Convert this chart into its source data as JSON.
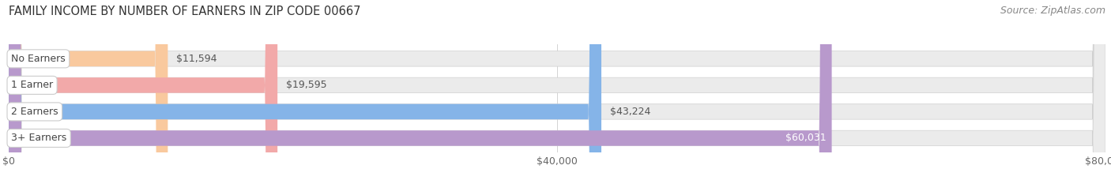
{
  "title": "FAMILY INCOME BY NUMBER OF EARNERS IN ZIP CODE 00667",
  "source": "Source: ZipAtlas.com",
  "categories": [
    "No Earners",
    "1 Earner",
    "2 Earners",
    "3+ Earners"
  ],
  "values": [
    11594,
    19595,
    43224,
    60031
  ],
  "bar_colors": [
    "#f9c99e",
    "#f2a9a9",
    "#85b4e8",
    "#b899cc"
  ],
  "value_labels": [
    "$11,594",
    "$19,595",
    "$43,224",
    "$60,031"
  ],
  "value_inside": [
    false,
    false,
    false,
    true
  ],
  "xlim": [
    0,
    80000
  ],
  "xticks": [
    0,
    40000,
    80000
  ],
  "xtick_labels": [
    "$0",
    "$40,000",
    "$80,000"
  ],
  "background_color": "#ffffff",
  "plot_bg_color": "#ffffff",
  "bar_background_color": "#ebebeb",
  "title_fontsize": 10.5,
  "source_fontsize": 9,
  "label_fontsize": 9,
  "value_fontsize": 9,
  "tick_fontsize": 9,
  "bar_height": 0.58
}
